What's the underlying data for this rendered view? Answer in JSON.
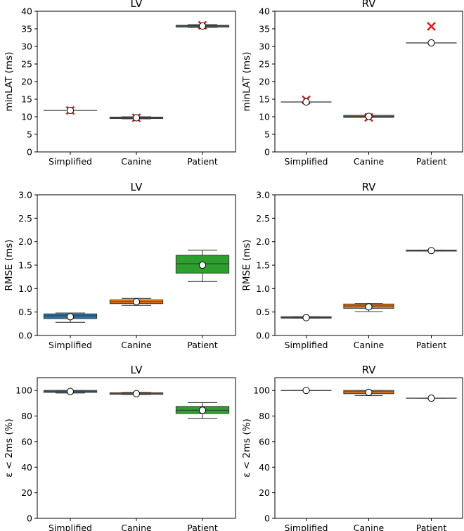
{
  "colors": {
    "Simplified": "#1f77b4",
    "Canine": "#ff7f0e",
    "Patient": "#2ca02c",
    "marker": "#e01b1b"
  },
  "chart_data": [
    {
      "type": "box",
      "title": "LV",
      "ylabel": "minLAT (ms)",
      "ylim": [
        0,
        40
      ],
      "yticks": [
        0,
        5,
        10,
        15,
        20,
        25,
        30,
        35,
        40
      ],
      "categories": [
        "Simplified",
        "Canine",
        "Patient"
      ],
      "boxes": [
        {
          "category": "Simplified",
          "whisker_low": 11.8,
          "q1": 11.8,
          "median": 11.8,
          "q3": 11.8,
          "whisker_high": 11.8,
          "mean": 11.8
        },
        {
          "category": "Canine",
          "whisker_low": 9.4,
          "q1": 9.5,
          "median": 9.7,
          "q3": 9.9,
          "whisker_high": 10.0,
          "mean": 9.7
        },
        {
          "category": "Patient",
          "whisker_low": 35.4,
          "q1": 35.5,
          "median": 35.8,
          "q3": 36.0,
          "whisker_high": 36.2,
          "mean": 35.8
        }
      ],
      "crosses": [
        {
          "category": "Simplified",
          "value": 11.8
        },
        {
          "category": "Canine",
          "value": 9.7
        },
        {
          "category": "Patient",
          "value": 36.0
        }
      ]
    },
    {
      "type": "box",
      "title": "RV",
      "ylabel": "minLAT (ms)",
      "ylim": [
        0,
        40
      ],
      "yticks": [
        0,
        5,
        10,
        15,
        20,
        25,
        30,
        35,
        40
      ],
      "categories": [
        "Simplified",
        "Canine",
        "Patient"
      ],
      "boxes": [
        {
          "category": "Simplified",
          "whisker_low": 14.2,
          "q1": 14.2,
          "median": 14.2,
          "q3": 14.2,
          "whisker_high": 14.2,
          "mean": 14.2
        },
        {
          "category": "Canine",
          "whisker_low": 9.8,
          "q1": 9.8,
          "median": 10.1,
          "q3": 10.4,
          "whisker_high": 10.4,
          "mean": 10.1
        },
        {
          "category": "Patient",
          "whisker_low": 31.0,
          "q1": 31.0,
          "median": 31.0,
          "q3": 31.0,
          "whisker_high": 31.0,
          "mean": 31.0
        }
      ],
      "crosses": [
        {
          "category": "Simplified",
          "value": 14.8
        },
        {
          "category": "Canine",
          "value": 9.8
        },
        {
          "category": "Patient",
          "value": 35.7
        }
      ]
    },
    {
      "type": "box",
      "title": "LV",
      "ylabel": "RMSE (ms)",
      "ylim": [
        0,
        3.0
      ],
      "yticks": [
        0.0,
        0.5,
        1.0,
        1.5,
        2.0,
        2.5,
        3.0
      ],
      "categories": [
        "Simplified",
        "Canine",
        "Patient"
      ],
      "boxes": [
        {
          "category": "Simplified",
          "whisker_low": 0.28,
          "q1": 0.36,
          "median": 0.42,
          "q3": 0.46,
          "whisker_high": 0.48,
          "mean": 0.4
        },
        {
          "category": "Canine",
          "whisker_low": 0.64,
          "q1": 0.68,
          "median": 0.72,
          "q3": 0.76,
          "whisker_high": 0.79,
          "mean": 0.72
        },
        {
          "category": "Patient",
          "whisker_low": 1.15,
          "q1": 1.33,
          "median": 1.53,
          "q3": 1.71,
          "whisker_high": 1.82,
          "mean": 1.5
        }
      ],
      "crosses": []
    },
    {
      "type": "box",
      "title": "RV",
      "ylabel": "RMSE (ms)",
      "ylim": [
        0,
        3.0
      ],
      "yticks": [
        0.0,
        0.5,
        1.0,
        1.5,
        2.0,
        2.5,
        3.0
      ],
      "categories": [
        "Simplified",
        "Canine",
        "Patient"
      ],
      "boxes": [
        {
          "category": "Simplified",
          "whisker_low": 0.37,
          "q1": 0.37,
          "median": 0.38,
          "q3": 0.4,
          "whisker_high": 0.4,
          "mean": 0.38
        },
        {
          "category": "Canine",
          "whisker_low": 0.51,
          "q1": 0.58,
          "median": 0.63,
          "q3": 0.67,
          "whisker_high": 0.68,
          "mean": 0.61
        },
        {
          "category": "Patient",
          "whisker_low": 1.8,
          "q1": 1.8,
          "median": 1.81,
          "q3": 1.82,
          "whisker_high": 1.82,
          "mean": 1.81
        }
      ],
      "crosses": []
    },
    {
      "type": "box",
      "title": "LV",
      "ylabel": "ε < 2ms (%)",
      "ylim": [
        0,
        110
      ],
      "yticks": [
        0,
        20,
        40,
        60,
        80,
        100
      ],
      "categories": [
        "Simplified",
        "Canine",
        "Patient"
      ],
      "boxes": [
        {
          "category": "Simplified",
          "whisker_low": 98.0,
          "q1": 98.5,
          "median": 99.5,
          "q3": 100.0,
          "whisker_high": 100.0,
          "mean": 99.2
        },
        {
          "category": "Canine",
          "whisker_low": 96.8,
          "q1": 97.0,
          "median": 97.5,
          "q3": 98.2,
          "whisker_high": 98.5,
          "mean": 97.5
        },
        {
          "category": "Patient",
          "whisker_low": 78.0,
          "q1": 82.0,
          "median": 84.5,
          "q3": 87.5,
          "whisker_high": 90.5,
          "mean": 84.5
        }
      ],
      "crosses": []
    },
    {
      "type": "box",
      "title": "RV",
      "ylabel": "ε < 2ms (%)",
      "ylim": [
        0,
        110
      ],
      "yticks": [
        0,
        20,
        40,
        60,
        80,
        100
      ],
      "categories": [
        "Simplified",
        "Canine",
        "Patient"
      ],
      "boxes": [
        {
          "category": "Simplified",
          "whisker_low": 100.0,
          "q1": 100.0,
          "median": 100.0,
          "q3": 100.0,
          "whisker_high": 100.0,
          "mean": 100.0
        },
        {
          "category": "Canine",
          "whisker_low": 96.0,
          "q1": 97.5,
          "median": 99.0,
          "q3": 100.0,
          "whisker_high": 100.0,
          "mean": 98.5
        },
        {
          "category": "Patient",
          "whisker_low": 94.0,
          "q1": 94.0,
          "median": 94.0,
          "q3": 94.0,
          "whisker_high": 94.0,
          "mean": 94.0
        }
      ],
      "crosses": []
    }
  ]
}
